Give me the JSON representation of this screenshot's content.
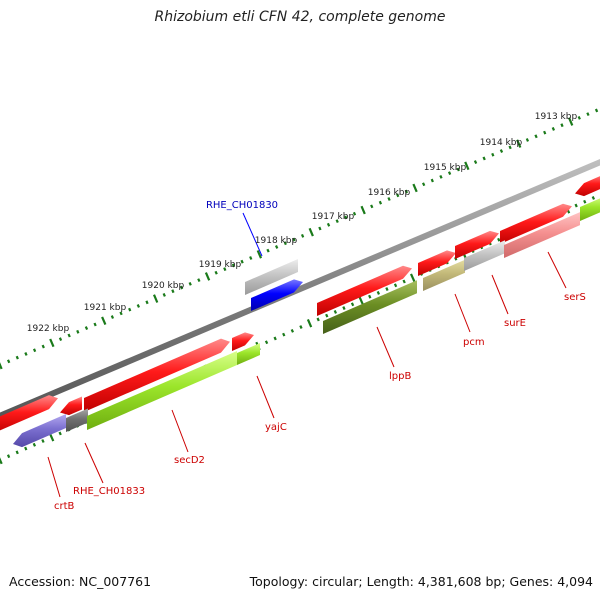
{
  "title": "Rhizobium etli CFN 42, complete genome",
  "accession": "Accession: NC_007761",
  "topology": "Topology: circular; Length: 4,381,608 bp; Genes: 4,094",
  "tick_labels": [
    "1913 kbp",
    "1914 kbp",
    "1915 kbp",
    "1916 kbp",
    "1917 kbp",
    "1918 kbp",
    "1919 kbp",
    "1920 kbp",
    "1921 kbp",
    "1922 kbp"
  ],
  "gene_labels": {
    "rhe_ch01830": "RHE_CH01830",
    "rhe_ch01833": "RHE_CH01833",
    "crtB": "crtB",
    "secD2": "secD2",
    "yajC": "yajC",
    "lppB": "lppB",
    "pcm": "pcm",
    "surE": "surE",
    "serS": "serS"
  },
  "colors": {
    "backbone": "#808080",
    "forward_gene": "#ff0000",
    "reverse_gene_lime": "#99ee22",
    "reverse_gene_olive": "#6b8e23",
    "reverse_gene_khaki": "#c8c080",
    "reverse_gene_pink": "#f39090",
    "reverse_gene_violet": "#7b6fd0",
    "reverse_gene_grey": "#707070",
    "selected_gene": "#0000ff",
    "pseudo_gene": "#b8b8b8",
    "tick": "#1a7a1a",
    "gene_label": "#cc0000",
    "selected_label": "#0000bb"
  }
}
